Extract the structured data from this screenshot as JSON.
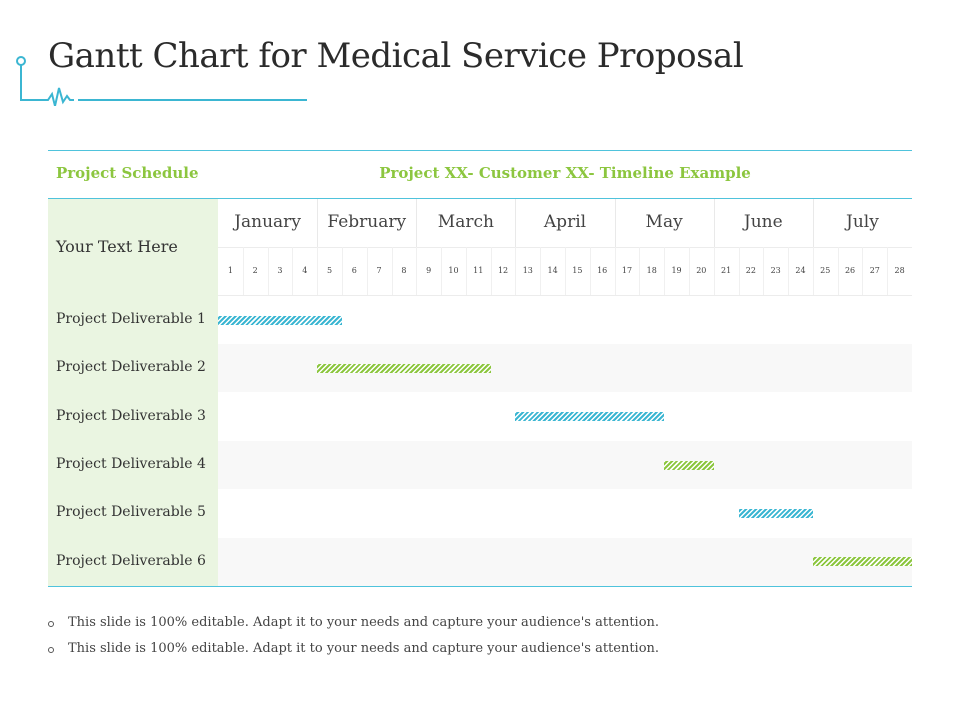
{
  "title": "Gantt Chart for Medical Service Proposal",
  "colors": {
    "accent_blue": "#3bb6d2",
    "accent_green": "#8cc63f",
    "left_col_bg": "#eaf5e1"
  },
  "chart_data": {
    "type": "gantt",
    "header_left": "Project Schedule",
    "header_right": "Project XX- Customer XX- Timeline Example",
    "side_label": "Your Text Here",
    "months": [
      "January",
      "February",
      "March",
      "April",
      "May",
      "June",
      "July"
    ],
    "weeks": [
      "1",
      "2",
      "3",
      "4",
      "5",
      "6",
      "7",
      "8",
      "9",
      "10",
      "11",
      "12",
      "13",
      "14",
      "15",
      "16",
      "17",
      "18",
      "19",
      "20",
      "21",
      "22",
      "23",
      "24",
      "25",
      "26",
      "27",
      "28"
    ],
    "tasks": [
      {
        "name": "Project Deliverable 1",
        "start_week": 1,
        "end_week": 5,
        "color": "#3bb6d2"
      },
      {
        "name": "Project Deliverable 2",
        "start_week": 5,
        "end_week": 11,
        "color": "#8cc63f"
      },
      {
        "name": "Project Deliverable 3",
        "start_week": 13,
        "end_week": 18,
        "color": "#3bb6d2"
      },
      {
        "name": "Project Deliverable 4",
        "start_week": 19,
        "end_week": 20,
        "color": "#8cc63f"
      },
      {
        "name": "Project Deliverable 5",
        "start_week": 22,
        "end_week": 24,
        "color": "#3bb6d2"
      },
      {
        "name": "Project Deliverable 6",
        "start_week": 25,
        "end_week": 28,
        "color": "#8cc63f"
      }
    ]
  },
  "notes": [
    "This slide is 100% editable. Adapt it to your needs and capture your audience's attention.",
    "This slide is 100% editable. Adapt it to your needs and capture your audience's attention."
  ]
}
